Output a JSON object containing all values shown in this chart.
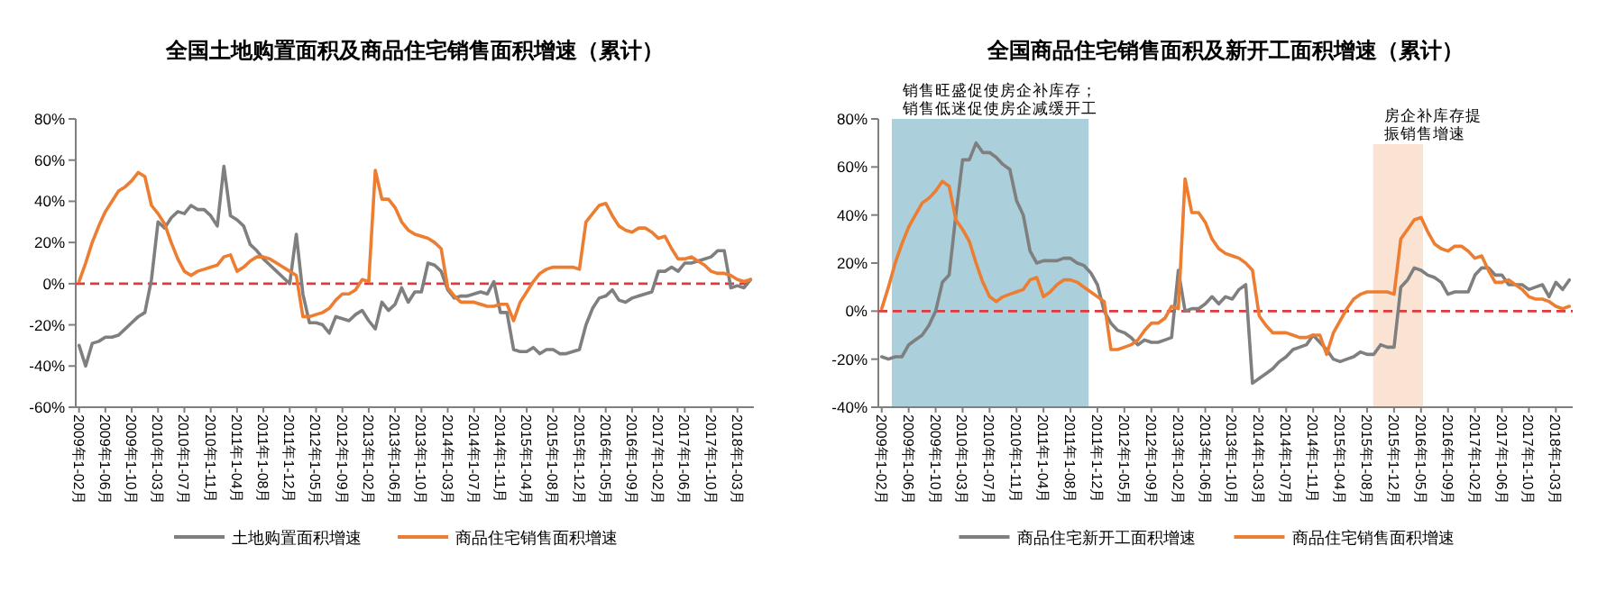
{
  "chart_data": [
    {
      "type": "line",
      "title": "全国土地购置面积及商品住宅销售面积增速（累计）",
      "categories": [
        "2009年1-02月",
        null,
        null,
        null,
        "2009年1-06月",
        null,
        null,
        null,
        "2009年1-10月",
        null,
        null,
        null,
        "2010年1-03月",
        null,
        null,
        null,
        "2010年1-07月",
        null,
        null,
        null,
        "2010年1-11月",
        null,
        null,
        null,
        "2011年1-04月",
        null,
        null,
        null,
        "2011年1-08月",
        null,
        null,
        null,
        "2011年1-12月",
        null,
        null,
        null,
        "2012年1-05月",
        null,
        null,
        null,
        "2012年1-09月",
        null,
        null,
        null,
        "2013年1-02月",
        null,
        null,
        null,
        "2013年1-06月",
        null,
        null,
        null,
        "2013年1-10月",
        null,
        null,
        null,
        "2014年1-03月",
        null,
        null,
        null,
        "2014年1-07月",
        null,
        null,
        null,
        "2014年1-11月",
        null,
        null,
        null,
        "2015年1-04月",
        null,
        null,
        null,
        "2015年1-08月",
        null,
        null,
        null,
        "2015年1-12月",
        null,
        null,
        null,
        "2016年1-05月",
        null,
        null,
        null,
        "2016年1-09月",
        null,
        null,
        null,
        "2017年1-02月",
        null,
        null,
        null,
        "2017年1-06月",
        null,
        null,
        null,
        "2017年1-10月",
        null,
        null,
        null,
        "2018年1-03月",
        null,
        null
      ],
      "series": [
        {
          "name": "土地购置面积增速",
          "color": "#7f7f7f",
          "values": [
            -30,
            -40,
            -29,
            -28,
            -26,
            -26,
            -25,
            -22,
            -19,
            -16,
            -14,
            2,
            30,
            27,
            32,
            35,
            34,
            38,
            36,
            36,
            33,
            28,
            57,
            33,
            31,
            28,
            19,
            16,
            12,
            9,
            6,
            3,
            0,
            24,
            -5,
            -19,
            -19,
            -20,
            -24,
            -16,
            -17,
            -18,
            -15,
            -13,
            -18,
            -22,
            -9,
            -13,
            -10,
            -2,
            -9,
            -4,
            -4,
            10,
            9,
            6,
            -3,
            -7,
            -6,
            -6,
            -5,
            -4,
            -5,
            1,
            -14,
            -14,
            -32,
            -33,
            -33,
            -31,
            -34,
            -32,
            -32,
            -34,
            -34,
            -33,
            -32,
            -20,
            -12,
            -7,
            -6,
            -3,
            -8,
            -9,
            -7,
            -6,
            -5,
            -4,
            6,
            6,
            8,
            6,
            10,
            10,
            11,
            12,
            13,
            16,
            16,
            -2,
            -1,
            -2,
            2
          ]
        },
        {
          "name": "商品住宅销售面积增速",
          "color": "#ed7d31",
          "values": [
            1,
            10,
            20,
            28,
            35,
            40,
            45,
            47,
            50,
            54,
            52,
            38,
            34,
            29,
            20,
            12,
            6,
            4,
            6,
            7,
            8,
            9,
            13,
            14,
            6,
            8,
            11,
            13,
            13,
            12,
            10,
            8,
            6,
            4,
            -16,
            -16,
            -15,
            -14,
            -12,
            -8,
            -5,
            -5,
            -3,
            2,
            1,
            55,
            41,
            41,
            37,
            30,
            26,
            24,
            23,
            22,
            20,
            17,
            -2,
            -6,
            -9,
            -9,
            -9,
            -10,
            -11,
            -11,
            -10,
            -10,
            -18,
            -9,
            -4,
            1,
            5,
            7,
            8,
            8,
            8,
            8,
            7,
            30,
            34,
            38,
            39,
            33,
            28,
            26,
            25,
            27,
            27,
            25,
            22,
            23,
            17,
            12,
            12,
            13,
            11,
            9,
            6,
            5,
            5,
            4,
            2,
            1,
            2
          ]
        }
      ],
      "ylim": [
        -60,
        80
      ],
      "yticks": [
        {
          "value": -60,
          "label": "-60%"
        },
        {
          "value": -40,
          "label": "-40%"
        },
        {
          "value": -20,
          "label": "-20%"
        },
        {
          "value": 0,
          "label": "0%"
        },
        {
          "value": 20,
          "label": "20%"
        },
        {
          "value": 40,
          "label": "40%"
        },
        {
          "value": 60,
          "label": "60%"
        },
        {
          "value": 80,
          "label": "80%"
        }
      ],
      "ref_lines": [
        {
          "axis": "y",
          "value": 0,
          "color": "#e0393e",
          "line_style": "dashed"
        }
      ],
      "legend": "bottom",
      "grid": false,
      "marker": "none",
      "line_style": "solid"
    },
    {
      "type": "line",
      "title": "全国商品住宅销售面积及新开工面积增速（累计）",
      "categories": [
        "2009年1-02月",
        null,
        null,
        null,
        "2009年1-06月",
        null,
        null,
        null,
        "2009年1-10月",
        null,
        null,
        null,
        "2010年1-03月",
        null,
        null,
        null,
        "2010年1-07月",
        null,
        null,
        null,
        "2010年1-11月",
        null,
        null,
        null,
        "2011年1-04月",
        null,
        null,
        null,
        "2011年1-08月",
        null,
        null,
        null,
        "2011年1-12月",
        null,
        null,
        null,
        "2012年1-05月",
        null,
        null,
        null,
        "2012年1-09月",
        null,
        null,
        null,
        "2013年1-02月",
        null,
        null,
        null,
        "2013年1-06月",
        null,
        null,
        null,
        "2013年1-10月",
        null,
        null,
        null,
        "2014年1-03月",
        null,
        null,
        null,
        "2014年1-07月",
        null,
        null,
        null,
        "2014年1-11月",
        null,
        null,
        null,
        "2015年1-04月",
        null,
        null,
        null,
        "2015年1-08月",
        null,
        null,
        null,
        "2015年1-12月",
        null,
        null,
        null,
        "2016年1-05月",
        null,
        null,
        null,
        "2016年1-09月",
        null,
        null,
        null,
        "2017年1-02月",
        null,
        null,
        null,
        "2017年1-06月",
        null,
        null,
        null,
        "2017年1-10月",
        null,
        null,
        null,
        "2018年1-03月",
        null,
        null
      ],
      "series": [
        {
          "name": "商品住宅新开工面积增速",
          "color": "#7f7f7f",
          "values": [
            -19,
            -20,
            -19,
            -19,
            -14,
            -12,
            -10,
            -6,
            0,
            12,
            15,
            40,
            63,
            63,
            70,
            66,
            66,
            64,
            61,
            59,
            46,
            40,
            25,
            20,
            21,
            21,
            21,
            22,
            22,
            20,
            19,
            16,
            11,
            0,
            -5,
            -8,
            -9,
            -11,
            -14,
            -12,
            -13,
            -13,
            -12,
            -11,
            17,
            0,
            1,
            1,
            3,
            6,
            3,
            6,
            5,
            9,
            11,
            -30,
            -28,
            -26,
            -24,
            -21,
            -19,
            -16,
            -15,
            -14,
            -10,
            -13,
            -16,
            -20,
            -21,
            -20,
            -19,
            -17,
            -18,
            -18,
            -14,
            -15,
            -15,
            10,
            13,
            18,
            17,
            15,
            14,
            12,
            7,
            8,
            8,
            8,
            15,
            18,
            18,
            15,
            15,
            11,
            11,
            11,
            9,
            10,
            11,
            6,
            12,
            9,
            13
          ]
        },
        {
          "name": "商品住宅销售面积增速",
          "color": "#ed7d31",
          "values": [
            1,
            10,
            20,
            28,
            35,
            40,
            45,
            47,
            50,
            54,
            52,
            38,
            34,
            29,
            20,
            12,
            6,
            4,
            6,
            7,
            8,
            9,
            13,
            14,
            6,
            8,
            11,
            13,
            13,
            12,
            10,
            8,
            6,
            4,
            -16,
            -16,
            -15,
            -14,
            -12,
            -8,
            -5,
            -5,
            -3,
            2,
            1,
            55,
            41,
            41,
            37,
            30,
            26,
            24,
            23,
            22,
            20,
            17,
            -2,
            -6,
            -9,
            -9,
            -9,
            -10,
            -11,
            -11,
            -10,
            -10,
            -18,
            -9,
            -4,
            1,
            5,
            7,
            8,
            8,
            8,
            8,
            7,
            30,
            34,
            38,
            39,
            33,
            28,
            26,
            25,
            27,
            27,
            25,
            22,
            23,
            17,
            12,
            12,
            13,
            11,
            9,
            6,
            5,
            5,
            4,
            2,
            1,
            2
          ]
        }
      ],
      "ylim": [
        -40,
        80
      ],
      "yticks": [
        {
          "value": -40,
          "label": "-40%"
        },
        {
          "value": -20,
          "label": "-20%"
        },
        {
          "value": 0,
          "label": "0%"
        },
        {
          "value": 20,
          "label": "20%"
        },
        {
          "value": 40,
          "label": "40%"
        },
        {
          "value": 60,
          "label": "60%"
        },
        {
          "value": 80,
          "label": "80%"
        }
      ],
      "ref_lines": [
        {
          "axis": "y",
          "value": 0,
          "color": "#e0393e",
          "line_style": "dashed"
        }
      ],
      "annotations": [
        "销售旺盛促使房企补库存；",
        "销售低迷促使房企减缓开工",
        "房企补库存提",
        "振销售增速"
      ],
      "legend": "bottom",
      "grid": false,
      "marker": "none",
      "line_style": "solid"
    }
  ]
}
